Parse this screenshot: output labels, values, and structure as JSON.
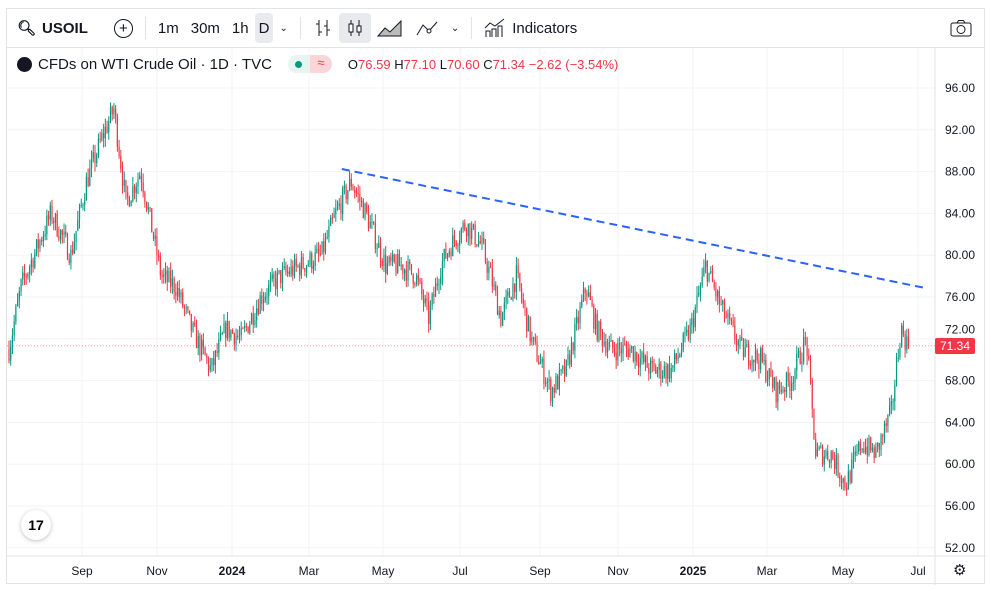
{
  "toolbar": {
    "symbol": "USOIL",
    "intervals": [
      "1m",
      "30m",
      "1h",
      "D"
    ],
    "active_interval": "D",
    "indicators_label": "Indicators"
  },
  "legend": {
    "title": "CFDs on WTI Crude Oil · 1D · TVC",
    "open_label": "O",
    "open": "76.59",
    "high_label": "H",
    "high": "77.10",
    "low_label": "L",
    "low": "70.60",
    "close_label": "C",
    "close": "71.34",
    "change": "−2.62 (−3.54%)",
    "status_icon": "≈"
  },
  "colors": {
    "up": "#089981",
    "down": "#f23645",
    "trendline": "#2962ff"
  },
  "chart_data": {
    "type": "candlestick",
    "price_axis": [
      "96.00",
      "92.00",
      "88.00",
      "84.00",
      "80.00",
      "76.00",
      "72.00",
      "68.00",
      "64.00",
      "60.00",
      "56.00",
      "52.00"
    ],
    "time_axis": [
      "Sep",
      "Nov",
      "2024",
      "Mar",
      "May",
      "Jul",
      "Sep",
      "Nov",
      "2025",
      "Mar",
      "May",
      "Jul"
    ],
    "ylim": [
      52,
      96
    ],
    "last_price": "71.34",
    "path_weeks_price": [
      [
        0,
        71
      ],
      [
        1.4,
        77
      ],
      [
        4.9,
        84
      ],
      [
        7.2,
        80
      ],
      [
        9,
        87
      ],
      [
        10.7,
        91
      ],
      [
        12.2,
        94
      ],
      [
        13.6,
        85
      ],
      [
        15.3,
        88
      ],
      [
        17.7,
        78
      ],
      [
        19.4,
        77
      ],
      [
        21.2,
        73
      ],
      [
        23.5,
        69
      ],
      [
        25.2,
        73
      ],
      [
        27,
        72
      ],
      [
        29.3,
        76
      ],
      [
        31.6,
        78
      ],
      [
        34,
        79
      ],
      [
        36.3,
        80
      ],
      [
        38,
        84
      ],
      [
        39.8,
        87
      ],
      [
        41.5,
        84
      ],
      [
        43.8,
        79
      ],
      [
        45.6,
        79
      ],
      [
        47.3,
        78
      ],
      [
        48.8,
        74
      ],
      [
        50.2,
        79
      ],
      [
        51.4,
        81
      ],
      [
        53.1,
        83
      ],
      [
        54.9,
        81
      ],
      [
        56,
        78
      ],
      [
        57.2,
        74
      ],
      [
        59,
        78
      ],
      [
        60.7,
        72
      ],
      [
        63,
        67
      ],
      [
        64.8,
        69
      ],
      [
        67.1,
        77
      ],
      [
        68.3,
        73
      ],
      [
        70,
        71
      ],
      [
        72.3,
        71
      ],
      [
        74.7,
        69
      ],
      [
        77,
        69
      ],
      [
        79.3,
        73
      ],
      [
        81,
        79
      ],
      [
        82.8,
        75
      ],
      [
        85.1,
        71
      ],
      [
        87.4,
        70
      ],
      [
        89.2,
        67
      ],
      [
        90.9,
        68
      ],
      [
        92.7,
        72
      ],
      [
        93.8,
        61
      ],
      [
        95.6,
        61
      ],
      [
        97.3,
        58
      ],
      [
        99.1,
        62
      ],
      [
        100.8,
        61
      ],
      [
        102.6,
        65
      ],
      [
        103.7,
        73
      ],
      [
        104.5,
        71.34
      ]
    ],
    "trendline": [
      [
        38.7,
        88.25
      ],
      [
        106.3,
        76.9
      ]
    ]
  }
}
